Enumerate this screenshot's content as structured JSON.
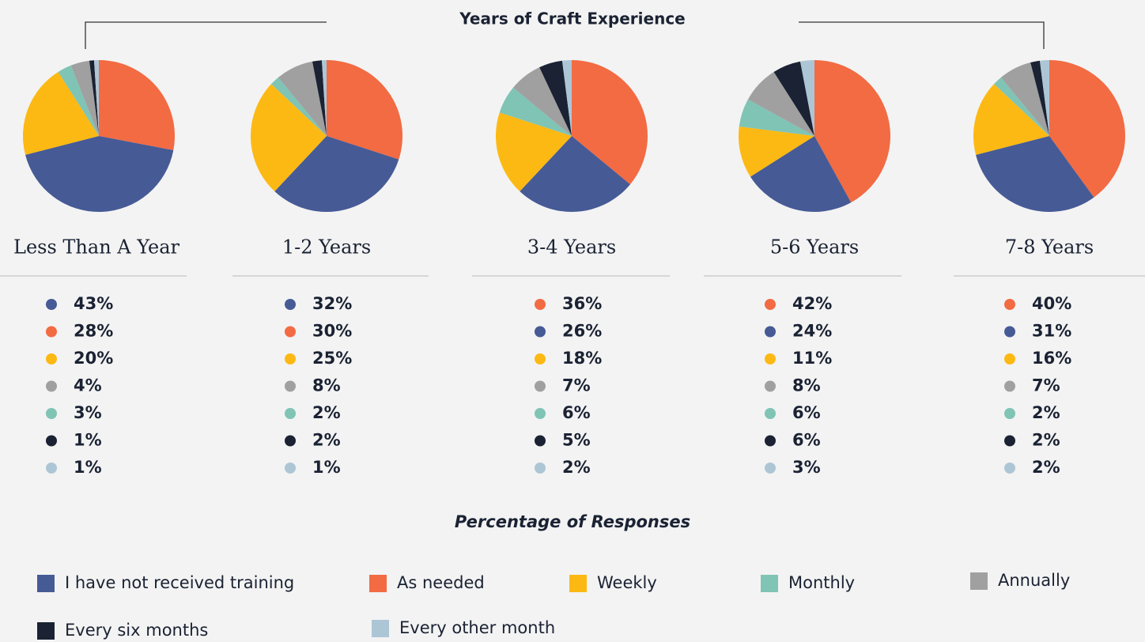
{
  "title": "Years of Craft Experience",
  "subtitle": "Percentage of Responses",
  "legend": [
    {
      "name": "I have not received training",
      "color": "#465a96"
    },
    {
      "name": "As needed",
      "color": "#f26b43"
    },
    {
      "name": "Weekly",
      "color": "#fdb913"
    },
    {
      "name": "Monthly",
      "color": "#7fc4b5"
    },
    {
      "name": "Annually",
      "color": "#a0a0a0"
    },
    {
      "name": "Every six months",
      "color": "#1a2233"
    },
    {
      "name": "Every other month",
      "color": "#adc6d6"
    }
  ],
  "chart_data": [
    {
      "type": "pie",
      "title": "Less Than A Year",
      "colors": [
        "#f26b43",
        "#465a96",
        "#fdb913",
        "#7fc4b5",
        "#a0a0a0",
        "#1a2233",
        "#adc6d6"
      ],
      "values": [
        28,
        43,
        20,
        3,
        4,
        1,
        1
      ],
      "value_labels": [
        "28%",
        "43%",
        "20%",
        "3%",
        "4%",
        "1%",
        "1%"
      ]
    },
    {
      "type": "pie",
      "title": "1-2 Years",
      "colors": [
        "#f26b43",
        "#465a96",
        "#fdb913",
        "#7fc4b5",
        "#a0a0a0",
        "#1a2233",
        "#adc6d6"
      ],
      "values": [
        30,
        32,
        25,
        2,
        8,
        2,
        1
      ],
      "value_labels": [
        "30%",
        "32%",
        "25%",
        "2%",
        "8%",
        "2%",
        "1%"
      ]
    },
    {
      "type": "pie",
      "title": "3-4 Years",
      "colors": [
        "#f26b43",
        "#465a96",
        "#fdb913",
        "#7fc4b5",
        "#a0a0a0",
        "#1a2233",
        "#adc6d6"
      ],
      "values": [
        36,
        26,
        18,
        6,
        7,
        5,
        2
      ],
      "value_labels": [
        "36%",
        "26%",
        "18%",
        "6%",
        "7%",
        "5%",
        "2%"
      ]
    },
    {
      "type": "pie",
      "title": "5-6 Years",
      "colors": [
        "#f26b43",
        "#465a96",
        "#fdb913",
        "#7fc4b5",
        "#a0a0a0",
        "#1a2233",
        "#adc6d6"
      ],
      "values": [
        42,
        24,
        11,
        6,
        8,
        6,
        3
      ],
      "value_labels": [
        "42%",
        "24%",
        "11%",
        "6%",
        "8%",
        "6%",
        "3%"
      ]
    },
    {
      "type": "pie",
      "title": "7-8 Years",
      "colors": [
        "#f26b43",
        "#465a96",
        "#fdb913",
        "#7fc4b5",
        "#a0a0a0",
        "#1a2233",
        "#adc6d6"
      ],
      "values": [
        40,
        31,
        16,
        2,
        7,
        2,
        2
      ],
      "value_labels": [
        "40%",
        "31%",
        "16%",
        "2%",
        "7%",
        "2%",
        "2%"
      ]
    }
  ]
}
